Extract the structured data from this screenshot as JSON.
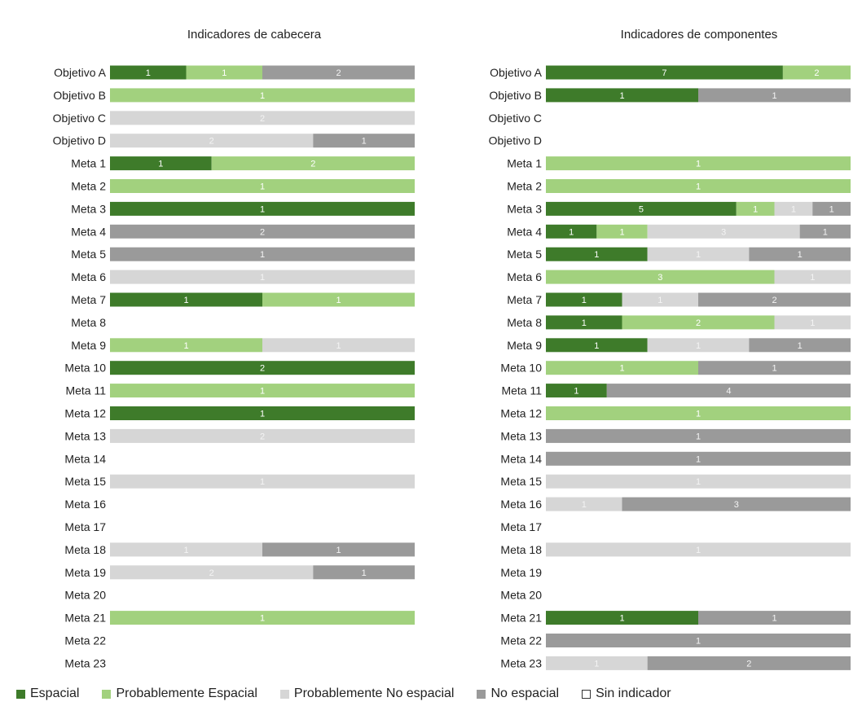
{
  "chart_data": [
    {
      "type": "bar",
      "orientation": "horizontal",
      "stacked": "100%",
      "title": "Indicadores de cabecera",
      "categories": [
        "Objetivo A",
        "Objetivo B",
        "Objetivo C",
        "Objetivo D",
        "Meta 1",
        "Meta 2",
        "Meta 3",
        "Meta 4",
        "Meta 5",
        "Meta 6",
        "Meta 7",
        "Meta 8",
        "Meta 9",
        "Meta 10",
        "Meta 11",
        "Meta 12",
        "Meta 13",
        "Meta 14",
        "Meta 15",
        "Meta 16",
        "Meta 17",
        "Meta 18",
        "Meta 19",
        "Meta 20",
        "Meta 21",
        "Meta 22",
        "Meta 23"
      ],
      "series": [
        {
          "name": "Espacial",
          "values": [
            1,
            0,
            0,
            0,
            1,
            0,
            1,
            0,
            0,
            0,
            1,
            0,
            0,
            2,
            0,
            1,
            0,
            0,
            0,
            0,
            0,
            0,
            0,
            0,
            0,
            0,
            0
          ]
        },
        {
          "name": "Probablemente Espacial",
          "values": [
            1,
            1,
            0,
            0,
            2,
            1,
            0,
            0,
            0,
            0,
            1,
            0,
            1,
            0,
            1,
            0,
            0,
            0,
            0,
            0,
            0,
            0,
            0,
            0,
            1,
            0,
            0
          ]
        },
        {
          "name": "Probablemente No espacial",
          "values": [
            0,
            0,
            2,
            2,
            0,
            0,
            0,
            0,
            0,
            1,
            0,
            0,
            1,
            0,
            0,
            0,
            2,
            0,
            1,
            0,
            0,
            1,
            2,
            0,
            0,
            0,
            0
          ]
        },
        {
          "name": "No espacial",
          "values": [
            2,
            0,
            0,
            1,
            0,
            0,
            0,
            2,
            1,
            0,
            0,
            0,
            0,
            0,
            0,
            0,
            0,
            0,
            0,
            0,
            0,
            1,
            1,
            0,
            0,
            0,
            0
          ]
        }
      ]
    },
    {
      "type": "bar",
      "orientation": "horizontal",
      "stacked": "100%",
      "title": "Indicadores de componentes",
      "categories": [
        "Objetivo A",
        "Objetivo B",
        "Objetivo C",
        "Objetivo D",
        "Meta 1",
        "Meta 2",
        "Meta 3",
        "Meta 4",
        "Meta 5",
        "Meta 6",
        "Meta 7",
        "Meta 8",
        "Meta 9",
        "Meta 10",
        "Meta 11",
        "Meta 12",
        "Meta 13",
        "Meta 14",
        "Meta 15",
        "Meta 16",
        "Meta 17",
        "Meta 18",
        "Meta 19",
        "Meta 20",
        "Meta 21",
        "Meta 22",
        "Meta 23"
      ],
      "series": [
        {
          "name": "Espacial",
          "values": [
            7,
            1,
            0,
            0,
            0,
            0,
            5,
            1,
            1,
            0,
            1,
            1,
            1,
            0,
            1,
            0,
            0,
            0,
            0,
            0,
            0,
            0,
            0,
            0,
            1,
            0,
            0
          ]
        },
        {
          "name": "Probablemente Espacial",
          "values": [
            2,
            0,
            0,
            0,
            1,
            1,
            1,
            1,
            0,
            3,
            0,
            2,
            0,
            1,
            0,
            1,
            0,
            0,
            0,
            0,
            0,
            0,
            0,
            0,
            0,
            0,
            0
          ]
        },
        {
          "name": "Probablemente No espacial",
          "values": [
            0,
            0,
            0,
            0,
            0,
            0,
            1,
            3,
            1,
            1,
            1,
            1,
            1,
            0,
            0,
            0,
            0,
            0,
            1,
            1,
            0,
            1,
            0,
            0,
            0,
            0,
            1
          ]
        },
        {
          "name": "No espacial",
          "values": [
            0,
            1,
            0,
            0,
            0,
            0,
            1,
            1,
            1,
            0,
            2,
            0,
            1,
            1,
            4,
            0,
            1,
            1,
            0,
            3,
            0,
            0,
            0,
            0,
            1,
            1,
            2
          ]
        }
      ]
    }
  ],
  "legend": {
    "placement": "bottom",
    "items": [
      {
        "label": "Espacial",
        "color": "#3e7b2a"
      },
      {
        "label": "Probablemente Espacial",
        "color": "#a2d17e"
      },
      {
        "label": "Probablemente No espacial",
        "color": "#d6d6d6"
      },
      {
        "label": "No espacial",
        "color": "#9a9a9a"
      },
      {
        "label": "Sin indicador",
        "color": "#ffffff"
      }
    ]
  },
  "colors": {
    "Espacial": "#3e7b2a",
    "Probablemente Espacial": "#a2d17e",
    "Probablemente No espacial": "#d6d6d6",
    "No espacial": "#9a9a9a"
  }
}
